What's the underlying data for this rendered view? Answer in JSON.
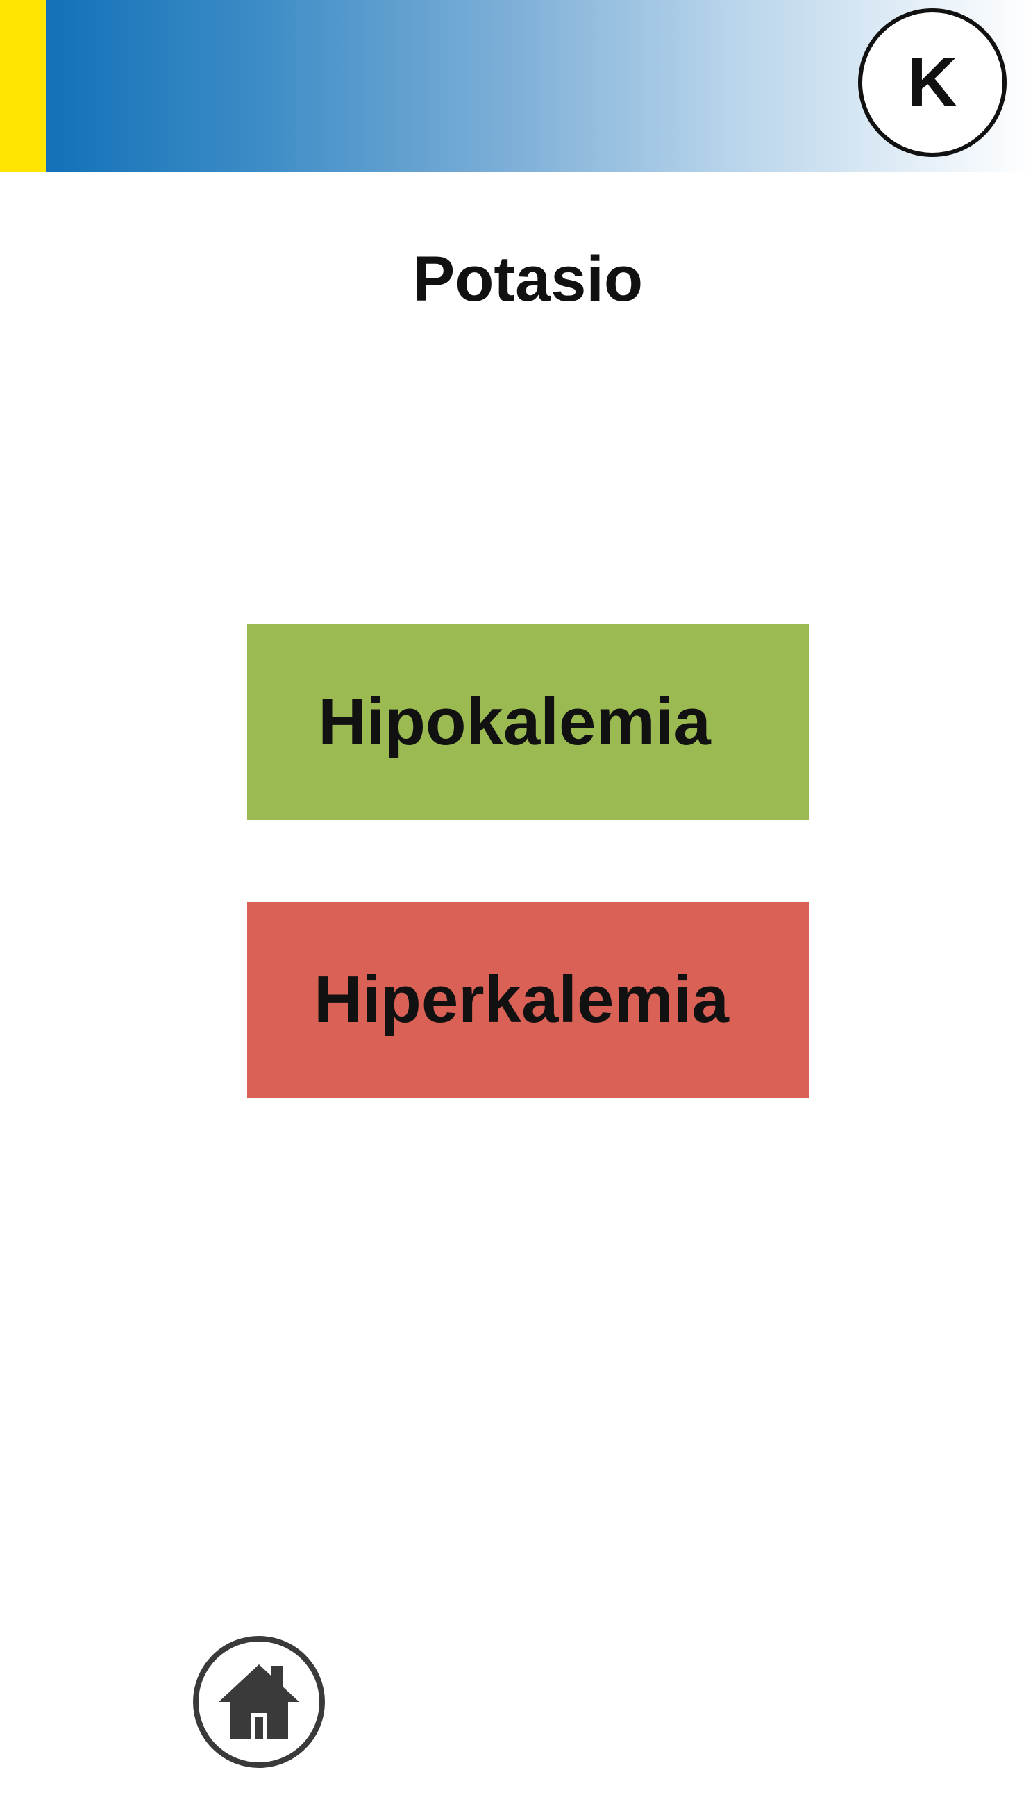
{
  "header": {
    "badge_label": "K"
  },
  "page": {
    "title": "Potasio"
  },
  "options": [
    {
      "label": "Hipokalemia",
      "color": "#9bba52"
    },
    {
      "label": "Hiperkalemia",
      "color": "#d96155"
    }
  ],
  "footer": {
    "home_icon": "home-icon"
  },
  "colors": {
    "accent_yellow": "#ffe500",
    "header_blue": "#0a6bb5"
  }
}
